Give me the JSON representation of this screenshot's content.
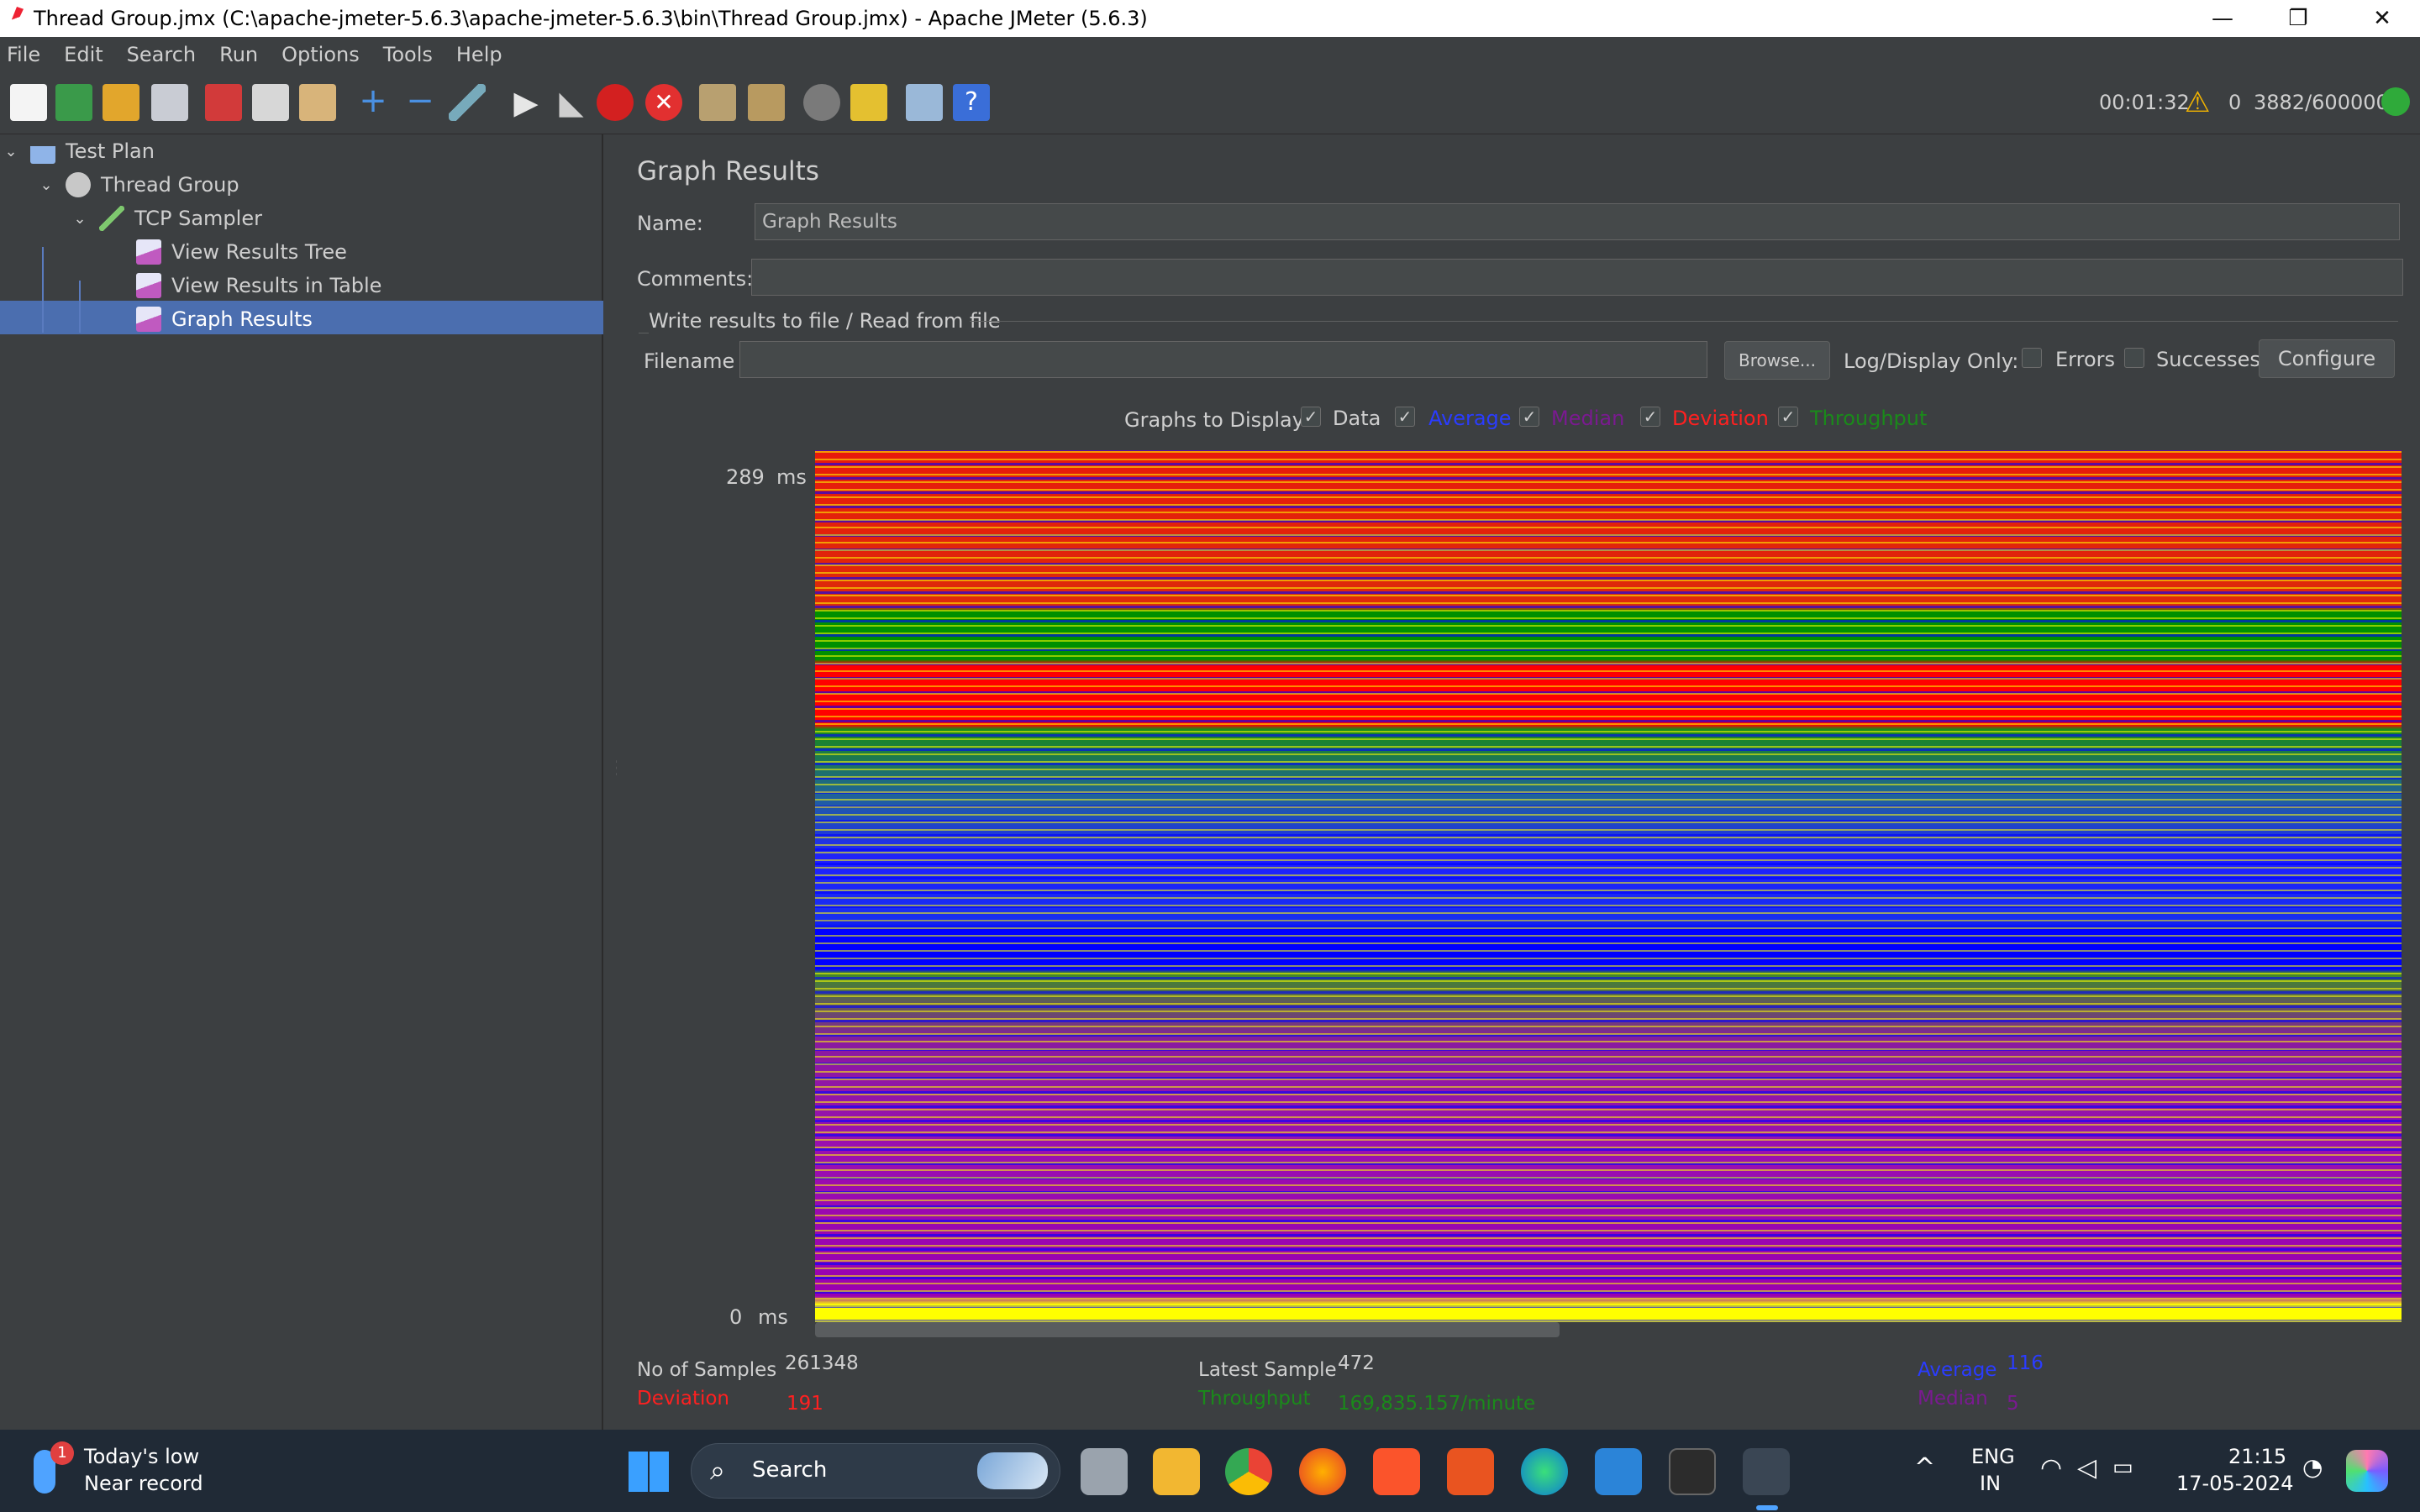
{
  "window": {
    "title": "Thread Group.jmx (C:\\apache-jmeter-5.6.3\\apache-jmeter-5.6.3\\bin\\Thread Group.jmx) - Apache JMeter (5.6.3)",
    "minimize": "—",
    "maximize": "❐",
    "close": "✕"
  },
  "menu": {
    "items": [
      "File",
      "Edit",
      "Search",
      "Run",
      "Options",
      "Tools",
      "Help"
    ]
  },
  "toolbar": {
    "elapsed": "00:01:32",
    "warning_count": "0",
    "threads": "3882/600000",
    "icons": [
      "new-icon",
      "templates-icon",
      "open-icon",
      "save-icon",
      "cut-icon",
      "copy-icon",
      "paste-icon",
      "expand-icon",
      "collapse-icon",
      "toggle-icon",
      "start-icon",
      "start-no-pause-icon",
      "stop-icon",
      "shutdown-icon",
      "clear-icon",
      "clear-all-icon",
      "search-icon",
      "reset-search-icon",
      "function-helper-icon",
      "help-icon"
    ]
  },
  "tree": {
    "nodes": [
      {
        "label": "Test Plan",
        "icon": "flask-icon"
      },
      {
        "label": "Thread Group",
        "icon": "gear-icon"
      },
      {
        "label": "TCP Sampler",
        "icon": "pipette-icon"
      },
      {
        "label": "View Results Tree",
        "icon": "graph-listener-icon"
      },
      {
        "label": "View Results in Table",
        "icon": "graph-listener-icon"
      },
      {
        "label": "Graph Results",
        "icon": "graph-listener-icon"
      }
    ]
  },
  "panel": {
    "title": "Graph Results",
    "name_label": "Name:",
    "name_value": "Graph Results",
    "comments_label": "Comments:",
    "comments_value": "",
    "file_group": "Write results to file / Read from file",
    "filename_label": "Filename",
    "filename_value": "",
    "browse_label": "Browse...",
    "log_display_label": "Log/Display Only:",
    "errors_label": "Errors",
    "successes_label": "Successes",
    "configure_label": "Configure",
    "graphs_to_display": "Graphs to Display",
    "checks": [
      {
        "label": "Data",
        "color": "#cfcfcf",
        "checked": true
      },
      {
        "label": "Average",
        "color": "#2020ff",
        "checked": true
      },
      {
        "label": "Median",
        "color": "#8a1aa0",
        "checked": true
      },
      {
        "label": "Deviation",
        "color": "#ff2020",
        "checked": true
      },
      {
        "label": "Throughput",
        "color": "#1a8a1a",
        "checked": true
      }
    ]
  },
  "graph": {
    "y_max": "289",
    "y_min": "0",
    "unit": "ms"
  },
  "stats": {
    "samples_label": "No of Samples",
    "samples_value": "261348",
    "latest_label": "Latest Sample",
    "latest_value": "472",
    "average_label": "Average",
    "average_value": "116",
    "deviation_label": "Deviation",
    "deviation_value": "191",
    "throughput_label": "Throughput",
    "throughput_value": "169,835.157/minute",
    "median_label": "Median",
    "median_value": "5"
  },
  "taskbar": {
    "weather_title": "Today's low",
    "weather_sub": "Near record",
    "weather_badge": "1",
    "search_label": "Search",
    "lang_top": "ENG",
    "lang_bottom": "IN",
    "time": "21:15",
    "date": "17-05-2024"
  }
}
